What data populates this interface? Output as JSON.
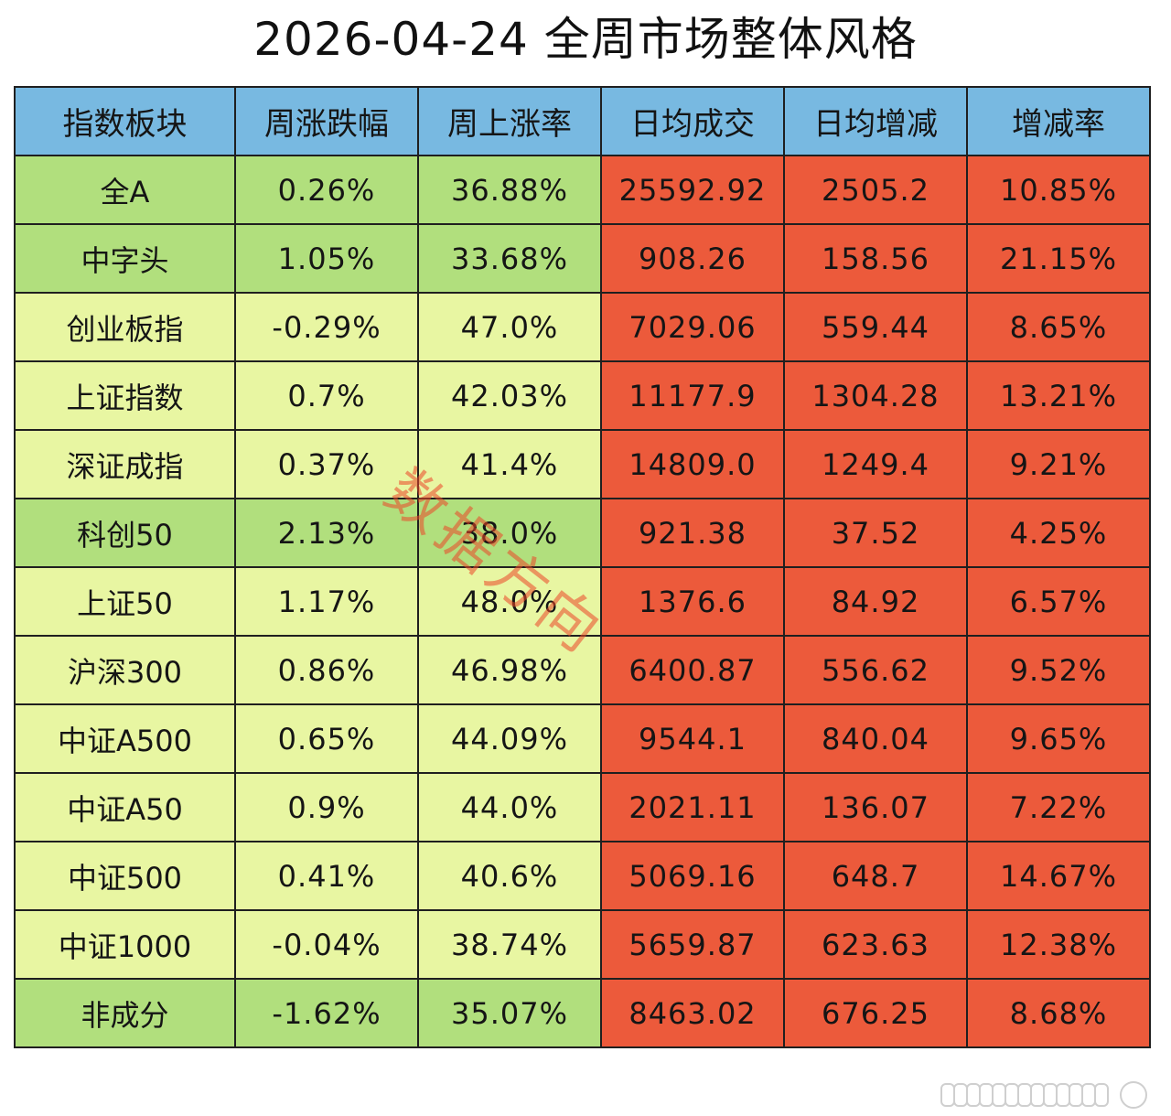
{
  "title": "2026-04-24 全周市场整体风格",
  "watermark": "数据方向",
  "colors": {
    "header": "#78b9e1",
    "green": "#b1df7d",
    "light_green": "#e8f6a2",
    "red": "#ec5a3b"
  },
  "table": {
    "headers": [
      "指数板块",
      "周涨跌幅",
      "周上涨率",
      "日均成交",
      "日均增减",
      "增减率"
    ],
    "rows": [
      {
        "name": "全A",
        "wk_chg": "0.26%",
        "wk_up": "36.88%",
        "avg_vol": "25592.92",
        "avg_diff": "2505.2",
        "diff_rate": "10.85%",
        "tone": "green"
      },
      {
        "name": "中字头",
        "wk_chg": "1.05%",
        "wk_up": "33.68%",
        "avg_vol": "908.26",
        "avg_diff": "158.56",
        "diff_rate": "21.15%",
        "tone": "green"
      },
      {
        "name": "创业板指",
        "wk_chg": "-0.29%",
        "wk_up": "47.0%",
        "avg_vol": "7029.06",
        "avg_diff": "559.44",
        "diff_rate": "8.65%",
        "tone": "light"
      },
      {
        "name": "上证指数",
        "wk_chg": "0.7%",
        "wk_up": "42.03%",
        "avg_vol": "11177.9",
        "avg_diff": "1304.28",
        "diff_rate": "13.21%",
        "tone": "light"
      },
      {
        "name": "深证成指",
        "wk_chg": "0.37%",
        "wk_up": "41.4%",
        "avg_vol": "14809.0",
        "avg_diff": "1249.4",
        "diff_rate": "9.21%",
        "tone": "light"
      },
      {
        "name": "科创50",
        "wk_chg": "2.13%",
        "wk_up": "38.0%",
        "avg_vol": "921.38",
        "avg_diff": "37.52",
        "diff_rate": "4.25%",
        "tone": "green"
      },
      {
        "name": "上证50",
        "wk_chg": "1.17%",
        "wk_up": "48.0%",
        "avg_vol": "1376.6",
        "avg_diff": "84.92",
        "diff_rate": "6.57%",
        "tone": "light"
      },
      {
        "name": "沪深300",
        "wk_chg": "0.86%",
        "wk_up": "46.98%",
        "avg_vol": "6400.87",
        "avg_diff": "556.62",
        "diff_rate": "9.52%",
        "tone": "light"
      },
      {
        "name": "中证A500",
        "wk_chg": "0.65%",
        "wk_up": "44.09%",
        "avg_vol": "9544.1",
        "avg_diff": "840.04",
        "diff_rate": "9.65%",
        "tone": "light"
      },
      {
        "name": "中证A50",
        "wk_chg": "0.9%",
        "wk_up": "44.0%",
        "avg_vol": "2021.11",
        "avg_diff": "136.07",
        "diff_rate": "7.22%",
        "tone": "light"
      },
      {
        "name": "中证500",
        "wk_chg": "0.41%",
        "wk_up": "40.6%",
        "avg_vol": "5069.16",
        "avg_diff": "648.7",
        "diff_rate": "14.67%",
        "tone": "light"
      },
      {
        "name": "中证1000",
        "wk_chg": "-0.04%",
        "wk_up": "38.74%",
        "avg_vol": "5659.87",
        "avg_diff": "623.63",
        "diff_rate": "12.38%",
        "tone": "light"
      },
      {
        "name": "非成分",
        "wk_chg": "-1.62%",
        "wk_up": "35.07%",
        "avg_vol": "8463.02",
        "avg_diff": "676.25",
        "diff_rate": "8.68%",
        "tone": "green"
      }
    ]
  }
}
